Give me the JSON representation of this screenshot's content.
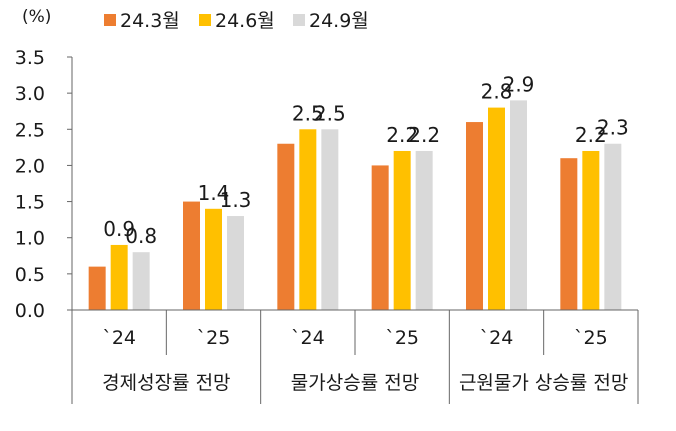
{
  "chart_data": {
    "type": "bar",
    "unit_label": "(%)",
    "ylim": [
      0.0,
      3.5
    ],
    "y_ticks": [
      "0.0",
      "0.5",
      "1.0",
      "1.5",
      "2.0",
      "2.5",
      "3.0",
      "3.5"
    ],
    "groups": [
      {
        "label": "경제성장률 전망",
        "years": [
          "`24",
          "`25"
        ]
      },
      {
        "label": "물가상승률 전망",
        "years": [
          "`24",
          "`25"
        ]
      },
      {
        "label": "근원물가 상승률 전망",
        "years": [
          "`24",
          "`25"
        ]
      }
    ],
    "categories": [
      "`24",
      "`25",
      "`24",
      "`25",
      "`24",
      "`25"
    ],
    "series": [
      {
        "name": "24.3월",
        "color": "#ED7D31",
        "values": [
          0.6,
          1.5,
          2.3,
          2.0,
          2.6,
          2.1
        ],
        "labels": [
          "",
          "",
          "",
          "",
          "",
          ""
        ]
      },
      {
        "name": "24.6월",
        "color": "#FFC000",
        "values": [
          0.9,
          1.4,
          2.5,
          2.2,
          2.8,
          2.2
        ],
        "labels": [
          "0.9",
          "1.4",
          "2.5",
          "2.2",
          "2.8",
          "2.2"
        ]
      },
      {
        "name": "24.9월",
        "color": "#D9D9D9",
        "values": [
          0.8,
          1.3,
          2.5,
          2.2,
          2.9,
          2.3
        ],
        "labels": [
          "0.8",
          "1.3",
          "2.5",
          "2.2",
          "2.9",
          "2.3"
        ]
      }
    ],
    "legend_position": "top",
    "grid": false
  }
}
